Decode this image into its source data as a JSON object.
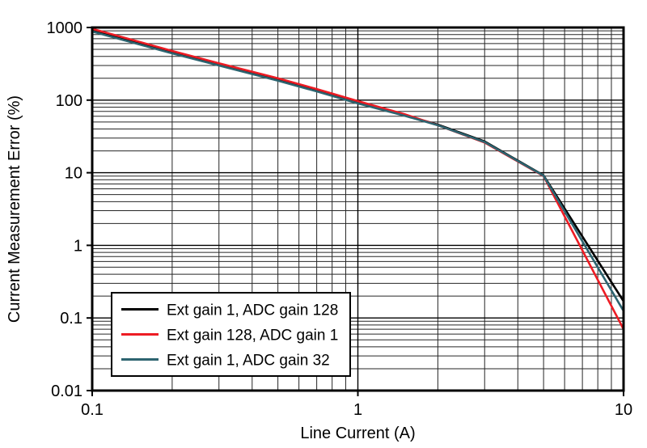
{
  "chart_data": {
    "type": "line",
    "title": "",
    "xlabel": "Line Current (A)",
    "ylabel": "Current Measurement Error (%)",
    "x_scale": "log",
    "y_scale": "log",
    "xlim": [
      0.1,
      10
    ],
    "ylim": [
      0.01,
      1000
    ],
    "x_ticks": [
      0.1,
      1,
      10
    ],
    "x_tick_labels": [
      "0.1",
      "1",
      "10"
    ],
    "y_ticks": [
      0.01,
      0.1,
      1,
      10,
      100,
      1000
    ],
    "y_tick_labels": [
      "0.01",
      "0.1",
      "1",
      "10",
      "100",
      "1000"
    ],
    "grid": "major+minor log grid, both axes",
    "grid_color": "#262626",
    "axis_color": "#000000",
    "legend_position": "bottom-left-inside",
    "series": [
      {
        "name": "Ext gain 1, ADC gain 128",
        "color": "#000000",
        "x": [
          0.1,
          0.2,
          0.3,
          0.5,
          0.7,
          1,
          1.5,
          2,
          3,
          5,
          10
        ],
        "y": [
          900,
          450,
          310,
          190,
          135,
          92,
          62,
          46,
          27,
          9.2,
          0.17
        ]
      },
      {
        "name": "Ext gain 128, ADC gain 1",
        "color": "#ed1c24",
        "x": [
          0.1,
          0.2,
          0.3,
          0.5,
          0.7,
          1,
          1.5,
          2,
          3,
          5,
          10
        ],
        "y": [
          960,
          475,
          322,
          200,
          142,
          97,
          64,
          45,
          26,
          9.0,
          0.07
        ]
      },
      {
        "name": "Ext gain 1, ADC gain 32",
        "color": "#2d6470",
        "x": [
          0.1,
          0.2,
          0.3,
          0.5,
          0.7,
          1,
          1.5,
          2,
          3,
          5,
          10
        ],
        "y": [
          880,
          440,
          300,
          185,
          132,
          90,
          61,
          45,
          26.5,
          9.1,
          0.125
        ]
      }
    ]
  }
}
